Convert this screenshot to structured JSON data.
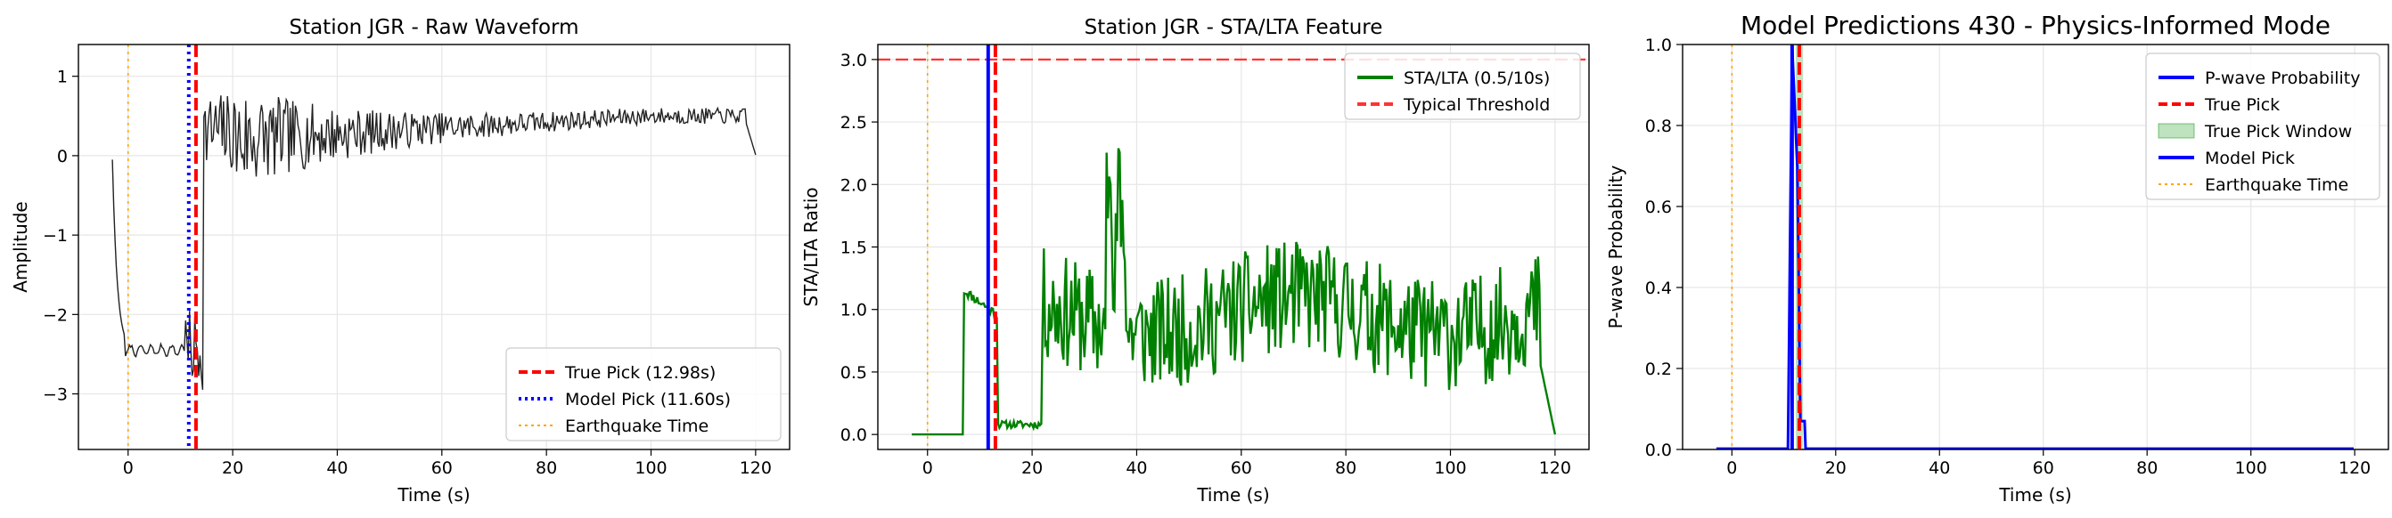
{
  "chart_data": [
    {
      "type": "line",
      "title": "Station JGR - Raw Waveform",
      "xlabel": "Time (s)",
      "ylabel": "Amplitude",
      "xlim": [
        -9.5,
        126.5
      ],
      "ylim": [
        -3.7,
        1.4
      ],
      "xticks": [
        0,
        20,
        40,
        60,
        80,
        100,
        120
      ],
      "yticks": [
        -3,
        -2,
        -1,
        0,
        1
      ],
      "grid": true,
      "legend_position": "lower-right",
      "series": [
        {
          "name": "",
          "color": "#222222",
          "kind": "waveform"
        }
      ],
      "vlines": [
        {
          "name": "True Pick (12.98s)",
          "x": 12.98,
          "color": "#ff0000",
          "style": "dashed"
        },
        {
          "name": "Model Pick (11.60s)",
          "x": 11.6,
          "color": "#0000ff",
          "style": "dotted"
        },
        {
          "name": "Earthquake Time",
          "x": 0,
          "color": "#ffa500",
          "style": "dotted"
        }
      ],
      "legend": [
        "True Pick (12.98s)",
        "Model Pick (11.60s)",
        "Earthquake Time"
      ]
    },
    {
      "type": "line",
      "title": "Station JGR - STA/LTA Feature",
      "xlabel": "Time (s)",
      "ylabel": "STA/LTA Ratio",
      "xlim": [
        -9.5,
        126.5
      ],
      "ylim": [
        -0.12,
        3.12
      ],
      "xticks": [
        0,
        20,
        40,
        60,
        80,
        100,
        120
      ],
      "yticks": [
        0.0,
        0.5,
        1.0,
        1.5,
        2.0,
        2.5,
        3.0
      ],
      "grid": true,
      "legend_position": "top-right",
      "series": [
        {
          "name": "STA/LTA (0.5/10s)",
          "color": "#008000",
          "kind": "stalta"
        }
      ],
      "hlines": [
        {
          "name": "Typical Threshold",
          "y": 3.0,
          "color": "#ff3333",
          "style": "dashed"
        }
      ],
      "vlines": [
        {
          "name": "",
          "x": 11.6,
          "color": "#0000ff",
          "style": "solid"
        },
        {
          "name": "",
          "x": 12.98,
          "color": "#ff0000",
          "style": "dashed"
        },
        {
          "name": "",
          "x": 0,
          "color": "#ffa500",
          "style": "dotted"
        }
      ],
      "legend": [
        "STA/LTA (0.5/10s)",
        "Typical Threshold"
      ]
    },
    {
      "type": "line",
      "title": "Model Predictions 430 - Physics-Informed Mode",
      "xlabel": "Time (s)",
      "ylabel": "P-wave Probability",
      "xlim": [
        -9.5,
        126.5
      ],
      "ylim": [
        0.0,
        1.0
      ],
      "xticks": [
        0,
        20,
        40,
        60,
        80,
        100,
        120
      ],
      "yticks": [
        0.0,
        0.2,
        0.4,
        0.6,
        0.8,
        1.0
      ],
      "grid": true,
      "legend_position": "top-right",
      "series": [
        {
          "name": "P-wave Probability",
          "color": "#0000ff",
          "kind": "prob"
        }
      ],
      "spans": [
        {
          "name": "True Pick Window",
          "x0": 12.3,
          "x1": 13.7,
          "color": "#2ca02c"
        }
      ],
      "vlines": [
        {
          "name": "True Pick",
          "x": 12.98,
          "color": "#ff0000",
          "style": "dashed"
        },
        {
          "name": "Model Pick",
          "x": 11.6,
          "color": "#0000ff",
          "style": "solid"
        },
        {
          "name": "Earthquake Time",
          "x": 0,
          "color": "#ffa500",
          "style": "dotted"
        }
      ],
      "legend": [
        "P-wave Probability",
        "True Pick",
        "True Pick Window",
        "Model Pick",
        "Earthquake Time"
      ]
    }
  ]
}
